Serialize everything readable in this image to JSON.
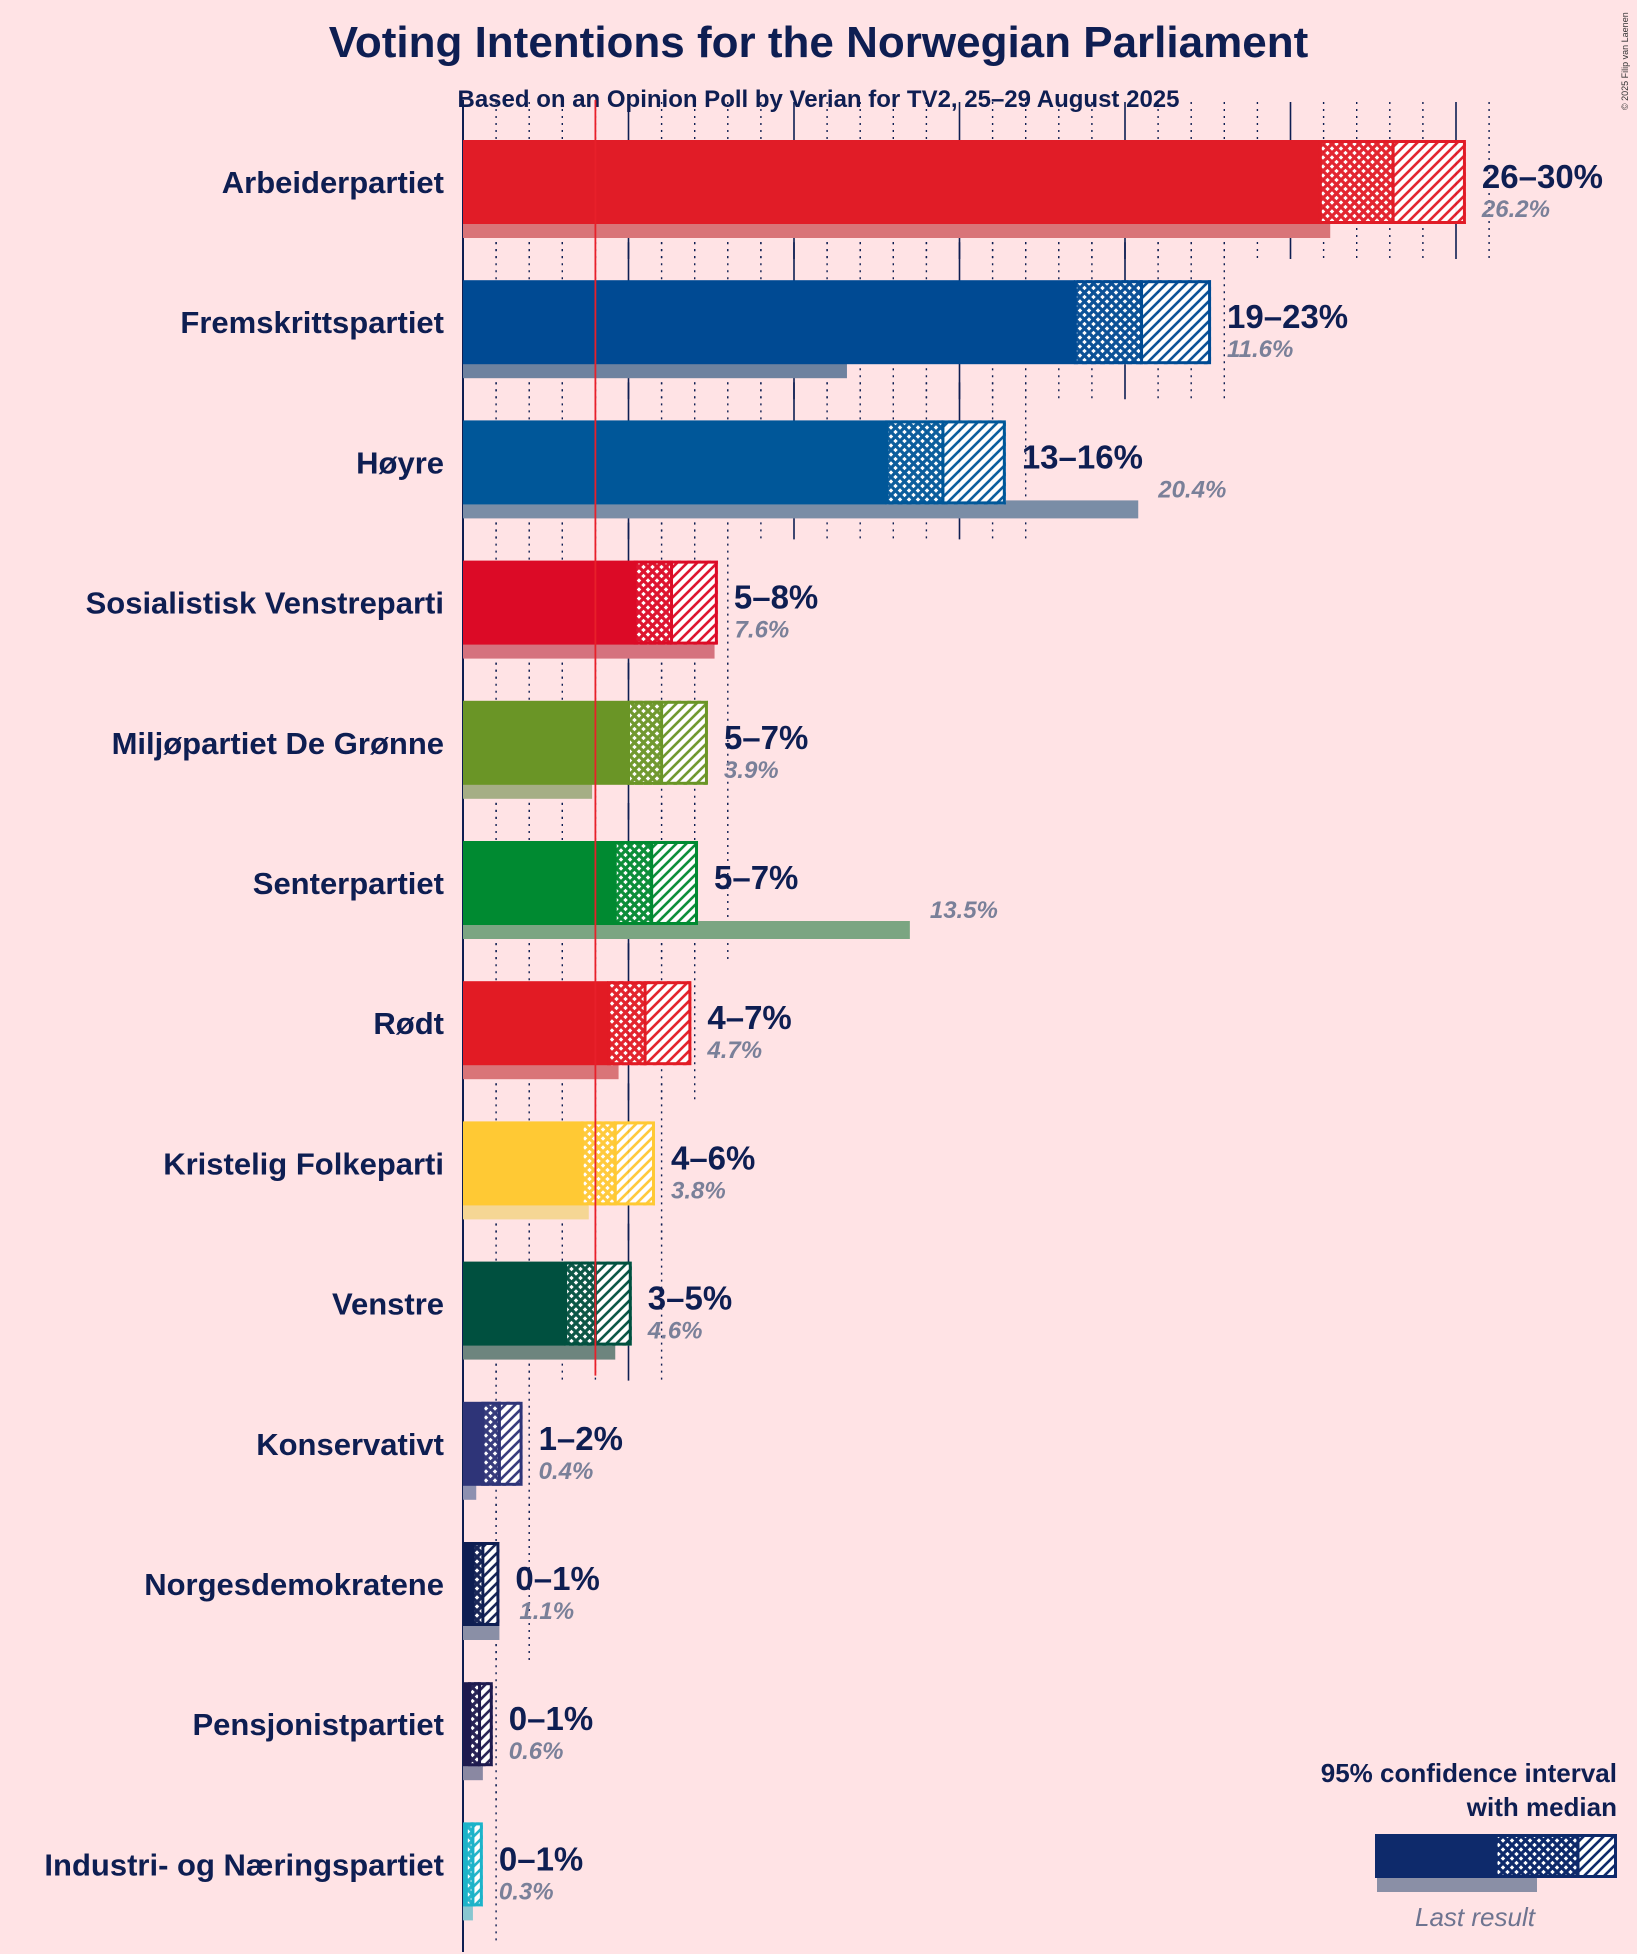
{
  "title": "Voting Intentions for the Norwegian Parliament",
  "subtitle": "Based on an Opinion Poll by Verian for TV2, 25–29 August 2025",
  "copyright": "© 2025 Filip van Laenen",
  "legend": {
    "line1": "95% confidence interval",
    "line2": "with median",
    "last_result": "Last result",
    "color": "#0E2A6B"
  },
  "threshold_line": {
    "value": 4,
    "color": "#E8202A"
  },
  "chart_data": {
    "type": "bar",
    "orientation": "horizontal",
    "title": "Voting Intentions for the Norwegian Parliament",
    "subtitle": "Based on an Opinion Poll by Verian for TV2, 25–29 August 2025",
    "x_unit": "%",
    "xlim": [
      0,
      31
    ],
    "major_ticks": [
      0,
      5,
      10,
      15,
      20,
      25,
      30
    ],
    "minor_tick_step": 1,
    "parties": [
      {
        "name": "Arbeiderpartiet",
        "low": 25.9,
        "median": 28.1,
        "high": 30.3,
        "range_label": "26–30%",
        "last": 26.2,
        "last_label": "26.2%",
        "color": "#E11C27",
        "last_color": "#D97478"
      },
      {
        "name": "Fremskrittspartiet",
        "low": 18.5,
        "median": 20.5,
        "high": 22.6,
        "range_label": "19–23%",
        "last": 11.6,
        "last_label": "11.6%",
        "color": "#004A93",
        "last_color": "#6E829F"
      },
      {
        "name": "Høyre",
        "low": 12.8,
        "median": 14.5,
        "high": 16.4,
        "range_label": "13–16%",
        "last": 20.4,
        "last_label": "20.4%",
        "color": "#005799",
        "last_color": "#7A8DA6"
      },
      {
        "name": "Sosialistisk Venstreparti",
        "low": 5.2,
        "median": 6.3,
        "high": 7.7,
        "range_label": "5–8%",
        "last": 7.6,
        "last_label": "7.6%",
        "color": "#DC0A26",
        "last_color": "#D5727E"
      },
      {
        "name": "Miljøpartiet De Grønne",
        "low": 5.0,
        "median": 6.0,
        "high": 7.4,
        "range_label": "5–7%",
        "last": 3.9,
        "last_label": "3.9%",
        "color": "#6A9526",
        "last_color": "#A5AE85"
      },
      {
        "name": "Senterpartiet",
        "low": 4.6,
        "median": 5.7,
        "high": 7.1,
        "range_label": "5–7%",
        "last": 13.5,
        "last_label": "13.5%",
        "color": "#008A31",
        "last_color": "#7BA582"
      },
      {
        "name": "Rødt",
        "low": 4.4,
        "median": 5.5,
        "high": 6.9,
        "range_label": "4–7%",
        "last": 4.7,
        "last_label": "4.7%",
        "color": "#E21B24",
        "last_color": "#D97478"
      },
      {
        "name": "Kristelig Folkeparti",
        "low": 3.6,
        "median": 4.6,
        "high": 5.8,
        "range_label": "4–6%",
        "last": 3.8,
        "last_label": "3.8%",
        "color": "#FFC934",
        "last_color": "#F5D694"
      },
      {
        "name": "Venstre",
        "low": 3.1,
        "median": 4.0,
        "high": 5.1,
        "range_label": "3–5%",
        "last": 4.6,
        "last_label": "4.6%",
        "color": "#00503F",
        "last_color": "#6D857E"
      },
      {
        "name": "Konservativt",
        "low": 0.6,
        "median": 1.1,
        "high": 1.8,
        "range_label": "1–2%",
        "last": 0.4,
        "last_label": "0.4%",
        "color": "#2E3478",
        "last_color": "#8D90B0"
      },
      {
        "name": "Norgesdemokratene",
        "low": 0.3,
        "median": 0.6,
        "high": 1.1,
        "range_label": "0–1%",
        "last": 1.1,
        "last_label": "1.1%",
        "color": "#0E1E52",
        "last_color": "#8A8FA6"
      },
      {
        "name": "Pensjonistpartiet",
        "low": 0.2,
        "median": 0.5,
        "high": 0.9,
        "range_label": "0–1%",
        "last": 0.6,
        "last_label": "0.6%",
        "color": "#1E1A4E",
        "last_color": "#8A88A2"
      },
      {
        "name": "Industri- og Næringspartiet",
        "low": 0.1,
        "median": 0.3,
        "high": 0.6,
        "range_label": "0–1%",
        "last": 0.3,
        "last_label": "0.3%",
        "color": "#1CB3C9",
        "last_color": "#88C6D0"
      }
    ]
  }
}
